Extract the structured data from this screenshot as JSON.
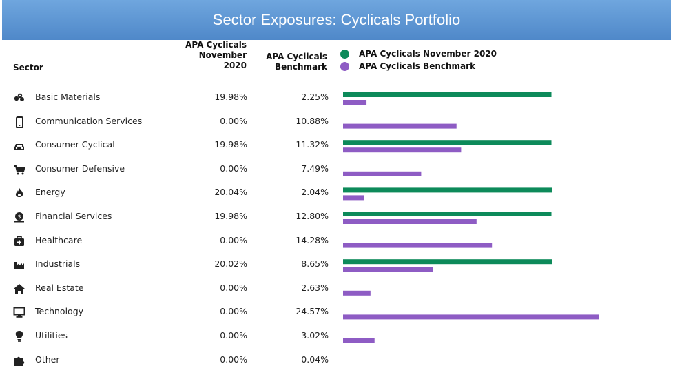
{
  "title": "Sector Exposures: Cyclicals Portfolio",
  "columns": {
    "sector": "Sector",
    "portfolio_line1": "APA Cyclicals",
    "portfolio_line2": "November",
    "portfolio_line3": "2020",
    "benchmark_line1": "APA Cyclicals",
    "benchmark_line2": "Benchmark"
  },
  "legend": {
    "portfolio": "APA Cyclicals November 2020",
    "benchmark": "APA Cyclicals Benchmark"
  },
  "colors": {
    "portfolio": "#0d8a5a",
    "benchmark": "#8e5cc4",
    "banner": "#5b93d2"
  },
  "chart_data": {
    "type": "bar",
    "title": "Sector Exposures: Cyclicals Portfolio",
    "categories": [
      "Basic Materials",
      "Communication Services",
      "Consumer Cyclical",
      "Consumer Defensive",
      "Energy",
      "Financial Services",
      "Healthcare",
      "Industrials",
      "Real Estate",
      "Technology",
      "Utilities",
      "Other"
    ],
    "series": [
      {
        "name": "APA Cyclicals November 2020",
        "values": [
          19.98,
          0.0,
          19.98,
          0.0,
          20.04,
          19.98,
          0.0,
          20.02,
          0.0,
          0.0,
          0.0,
          0.0
        ],
        "labels": [
          "19.98%",
          "0.00%",
          "19.98%",
          "0.00%",
          "20.04%",
          "19.98%",
          "0.00%",
          "20.02%",
          "0.00%",
          "0.00%",
          "0.00%",
          "0.00%"
        ]
      },
      {
        "name": "APA Cyclicals Benchmark",
        "values": [
          2.25,
          10.88,
          11.32,
          7.49,
          2.04,
          12.8,
          14.28,
          8.65,
          2.63,
          24.57,
          3.02,
          0.04
        ],
        "labels": [
          "2.25%",
          "10.88%",
          "11.32%",
          "7.49%",
          "2.04%",
          "12.80%",
          "14.28%",
          "8.65%",
          "2.63%",
          "24.57%",
          "3.02%",
          "0.04%"
        ]
      }
    ],
    "orientation": "horizontal",
    "legend": "top-right",
    "grid": false
  },
  "icons": [
    "materials-icon",
    "phone-icon",
    "car-icon",
    "cart-icon",
    "flame-icon",
    "money-icon",
    "medical-kit-icon",
    "factory-icon",
    "house-icon",
    "monitor-icon",
    "lightbulb-icon",
    "puzzle-icon"
  ]
}
